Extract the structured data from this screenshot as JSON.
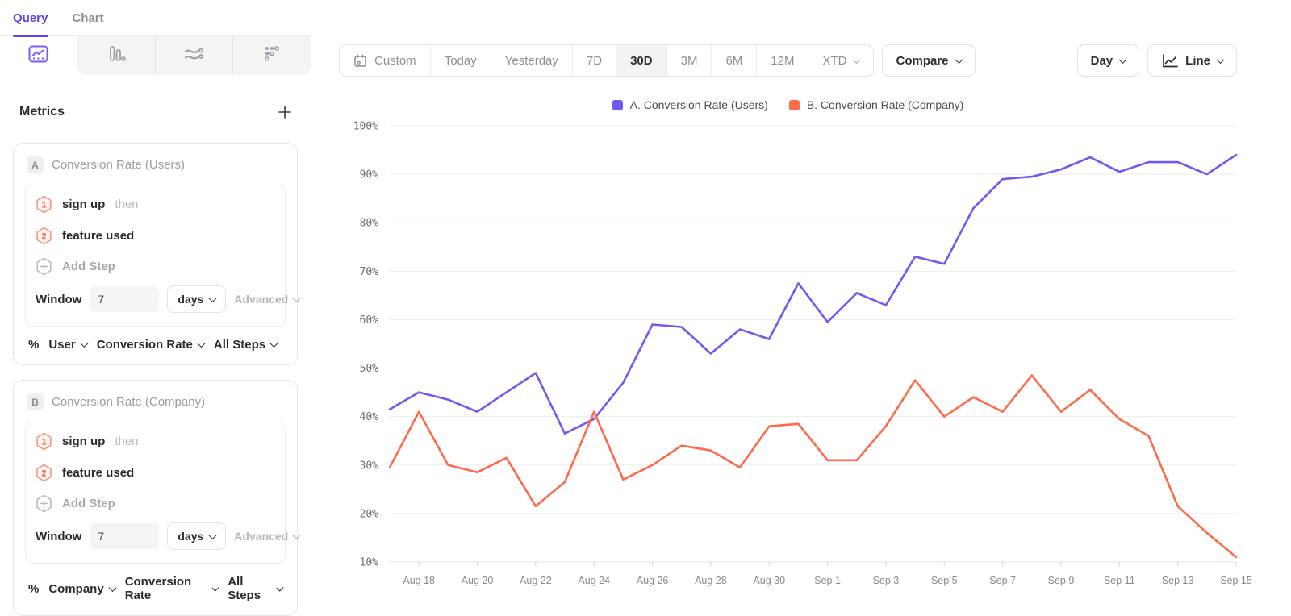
{
  "colors": {
    "accent": "#5B43E8",
    "series_a": "#7458EE",
    "series_b": "#FC6B4D",
    "step_badge_border": "#F59B84",
    "step_badge_fill": "#FFF3EF",
    "step_badge_text": "#E2603C"
  },
  "sidebar": {
    "tabs": [
      {
        "label": "Query"
      },
      {
        "label": "Chart"
      }
    ],
    "active_tab": "Query",
    "chart_type_icons": [
      "line-chart-icon",
      "bar-chart-icon",
      "flow-chart-icon",
      "retention-grid-icon"
    ],
    "metrics_title": "Metrics",
    "metrics": [
      {
        "badge": "A",
        "label": "Conversion Rate (Users)",
        "steps": [
          {
            "num": "1",
            "event": "sign up",
            "suffix": "then"
          },
          {
            "num": "2",
            "event": "feature used",
            "suffix": ""
          }
        ],
        "add_step_label": "Add Step",
        "window_label": "Window",
        "window_value": "7",
        "window_unit": "days",
        "advanced_label": "Advanced",
        "measure_prefix": "%",
        "measure_entity": "User",
        "measure_type": "Conversion Rate",
        "measure_steps": "All Steps"
      },
      {
        "badge": "B",
        "label": "Conversion Rate (Company)",
        "steps": [
          {
            "num": "1",
            "event": "sign up",
            "suffix": "then"
          },
          {
            "num": "2",
            "event": "feature used",
            "suffix": ""
          }
        ],
        "add_step_label": "Add Step",
        "window_label": "Window",
        "window_value": "7",
        "window_unit": "days",
        "advanced_label": "Advanced",
        "measure_prefix": "%",
        "measure_entity": "Company",
        "measure_type": "Conversion Rate",
        "measure_steps": "All Steps"
      }
    ]
  },
  "toolbar": {
    "date_ranges": [
      "Custom",
      "Today",
      "Yesterday",
      "7D",
      "30D",
      "3M",
      "6M",
      "12M",
      "XTD"
    ],
    "active_range": "30D",
    "compare_label": "Compare",
    "granularity_label": "Day",
    "chart_style_label": "Line"
  },
  "chart_data": {
    "type": "line",
    "title": "",
    "x": [
      "Aug 17",
      "Aug 18",
      "Aug 19",
      "Aug 20",
      "Aug 21",
      "Aug 22",
      "Aug 23",
      "Aug 24",
      "Aug 25",
      "Aug 26",
      "Aug 27",
      "Aug 28",
      "Aug 29",
      "Aug 30",
      "Aug 31",
      "Sep 1",
      "Sep 2",
      "Sep 3",
      "Sep 4",
      "Sep 5",
      "Sep 6",
      "Sep 7",
      "Sep 8",
      "Sep 9",
      "Sep 10",
      "Sep 11",
      "Sep 12",
      "Sep 13",
      "Sep 14",
      "Sep 15"
    ],
    "x_tick_labels": [
      "Aug 18",
      "Aug 20",
      "Aug 22",
      "Aug 24",
      "Aug 26",
      "Aug 28",
      "Aug 30",
      "Sep 1",
      "Sep 3",
      "Sep 5",
      "Sep 7",
      "Sep 9",
      "Sep 11",
      "Sep 13",
      "Sep 15"
    ],
    "series": [
      {
        "name": "A. Conversion Rate (Users)",
        "color": "#7458EE",
        "values": [
          41.5,
          45,
          43.5,
          41,
          45,
          49,
          36.5,
          39.5,
          47,
          59,
          58.5,
          53,
          58,
          56,
          67.5,
          59.5,
          65.5,
          63,
          73,
          71.5,
          83,
          89,
          89.5,
          91,
          93.5,
          90.5,
          92.5,
          92.5,
          90,
          94
        ]
      },
      {
        "name": "B. Conversion Rate (Company)",
        "color": "#FC6B4D",
        "values": [
          29.5,
          41,
          30,
          28.5,
          31.5,
          21.5,
          26.5,
          41,
          27,
          30,
          34,
          33,
          29.5,
          38,
          38.5,
          31,
          31,
          38,
          47.5,
          40,
          44,
          41,
          48.5,
          41,
          45.5,
          39.5,
          36,
          21.5,
          16,
          11
        ]
      }
    ],
    "ylim": [
      10,
      100
    ],
    "y_ticks": [
      "10%",
      "20%",
      "30%",
      "40%",
      "50%",
      "60%",
      "70%",
      "80%",
      "90%",
      "100%"
    ],
    "grid": true,
    "legend_position": "top",
    "unit": "%"
  }
}
